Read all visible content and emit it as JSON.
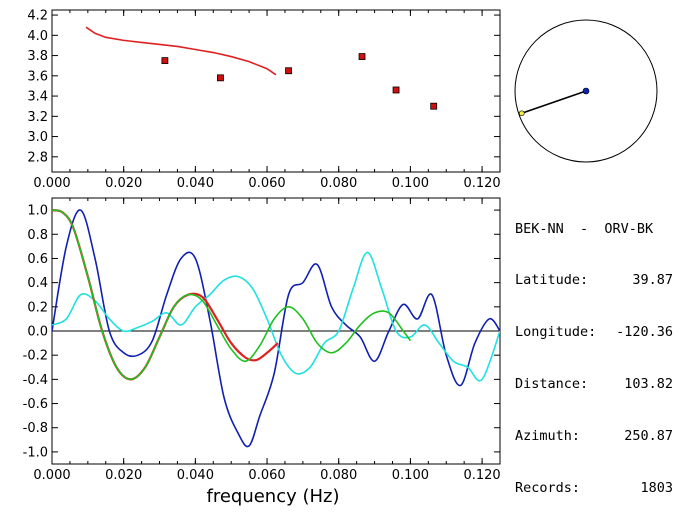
{
  "station_header": "BEK-NN  -  ORV-BK",
  "info": [
    {
      "key": "Latitude:",
      "value": "39.87"
    },
    {
      "key": "Longitude:",
      "value": "-120.36"
    },
    {
      "key": "Distance:",
      "value": "103.82"
    },
    {
      "key": "Azimuth:",
      "value": "250.87"
    },
    {
      "key": "Records:",
      "value": "1803"
    }
  ],
  "colors": {
    "red": "#e02020",
    "blue": "#1020b0",
    "green": "#20c020",
    "cyan": "#20e0e0",
    "marker": "#d01010"
  },
  "chart_data": [
    {
      "type": "scatter",
      "title": "",
      "xlabel": "",
      "ylabel": "",
      "xlim": [
        0.0,
        0.125
      ],
      "ylim": [
        2.65,
        4.25
      ],
      "x_ticks": [
        "0.000",
        "0.020",
        "0.040",
        "0.060",
        "0.080",
        "0.100",
        "0.120"
      ],
      "y_ticks": [
        "2.8",
        "3.0",
        "3.2",
        "3.4",
        "3.6",
        "3.8",
        "4.0",
        "4.2"
      ],
      "series": [
        {
          "kind": "line",
          "color": "#e02020",
          "x": [
            0.0095,
            0.012,
            0.015,
            0.02,
            0.025,
            0.03,
            0.035,
            0.04,
            0.045,
            0.05,
            0.055,
            0.06,
            0.0625
          ],
          "y": [
            4.08,
            4.02,
            3.98,
            3.95,
            3.93,
            3.91,
            3.89,
            3.86,
            3.83,
            3.79,
            3.74,
            3.67,
            3.61
          ]
        },
        {
          "kind": "markers",
          "color": "#d01010",
          "x": [
            0.0315,
            0.047,
            0.066,
            0.0865,
            0.096,
            0.1065
          ],
          "y": [
            3.75,
            3.58,
            3.65,
            3.79,
            3.46,
            3.3
          ]
        }
      ]
    },
    {
      "type": "line",
      "title": "",
      "xlabel": "frequency (Hz)",
      "ylabel": "",
      "xlim": [
        0.0,
        0.125
      ],
      "ylim": [
        -1.1,
        1.1
      ],
      "x_ticks": [
        "0.000",
        "0.020",
        "0.040",
        "0.060",
        "0.080",
        "0.100",
        "0.120"
      ],
      "y_ticks": [
        "-1.0",
        "-0.8",
        "-0.6",
        "-0.4",
        "-0.2",
        "0.0",
        "0.2",
        "0.4",
        "0.6",
        "0.8",
        "1.0"
      ],
      "series": [
        {
          "color": "#1020b0",
          "x": [
            0.0,
            0.004,
            0.008,
            0.012,
            0.016,
            0.02,
            0.024,
            0.028,
            0.032,
            0.036,
            0.04,
            0.044,
            0.048,
            0.052,
            0.055,
            0.058,
            0.062,
            0.066,
            0.07,
            0.074,
            0.078,
            0.082,
            0.086,
            0.09,
            0.094,
            0.098,
            0.102,
            0.106,
            0.11,
            0.114,
            0.118,
            0.122,
            0.125
          ],
          "y": [
            0.0,
            0.7,
            1.0,
            0.6,
            0.0,
            -0.18,
            -0.2,
            -0.08,
            0.3,
            0.6,
            0.6,
            0.1,
            -0.55,
            -0.85,
            -0.95,
            -0.7,
            -0.35,
            0.3,
            0.4,
            0.55,
            0.2,
            0.05,
            -0.05,
            -0.25,
            0.0,
            0.22,
            0.1,
            0.3,
            -0.2,
            -0.45,
            -0.1,
            0.1,
            0.0
          ]
        },
        {
          "color": "#20e0e0",
          "x": [
            0.0,
            0.004,
            0.008,
            0.012,
            0.016,
            0.02,
            0.024,
            0.028,
            0.032,
            0.036,
            0.04,
            0.044,
            0.048,
            0.052,
            0.056,
            0.06,
            0.064,
            0.068,
            0.072,
            0.076,
            0.08,
            0.084,
            0.088,
            0.092,
            0.096,
            0.1,
            0.104,
            0.108,
            0.112,
            0.116,
            0.12,
            0.125
          ],
          "y": [
            0.05,
            0.1,
            0.3,
            0.25,
            0.1,
            0.0,
            0.03,
            0.08,
            0.15,
            0.05,
            0.2,
            0.3,
            0.42,
            0.45,
            0.35,
            0.1,
            -0.2,
            -0.35,
            -0.3,
            -0.1,
            0.0,
            0.35,
            0.65,
            0.35,
            0.0,
            -0.05,
            0.05,
            -0.1,
            -0.25,
            -0.3,
            -0.4,
            0.0
          ]
        },
        {
          "color": "#e02020",
          "x": [
            0.0,
            0.003,
            0.006,
            0.01,
            0.014,
            0.018,
            0.022,
            0.026,
            0.03,
            0.034,
            0.038,
            0.042,
            0.046,
            0.05,
            0.054,
            0.057,
            0.06,
            0.063
          ],
          "y": [
            1.0,
            0.98,
            0.85,
            0.45,
            0.0,
            -0.3,
            -0.4,
            -0.3,
            -0.05,
            0.2,
            0.3,
            0.28,
            0.1,
            -0.1,
            -0.22,
            -0.24,
            -0.18,
            -0.1
          ]
        },
        {
          "color": "#20c020",
          "x": [
            0.0,
            0.003,
            0.006,
            0.01,
            0.014,
            0.018,
            0.022,
            0.026,
            0.03,
            0.034,
            0.038,
            0.042,
            0.046,
            0.05,
            0.054,
            0.058,
            0.062,
            0.066,
            0.07,
            0.074,
            0.078,
            0.082,
            0.086,
            0.09,
            0.094,
            0.098,
            0.1
          ],
          "y": [
            1.0,
            0.98,
            0.85,
            0.45,
            0.0,
            -0.3,
            -0.4,
            -0.3,
            -0.05,
            0.2,
            0.3,
            0.25,
            0.05,
            -0.15,
            -0.25,
            -0.12,
            0.1,
            0.2,
            0.1,
            -0.1,
            -0.18,
            -0.1,
            0.05,
            0.15,
            0.15,
            0.0,
            -0.08
          ]
        }
      ]
    }
  ],
  "azimuth_plot": {
    "azimuth_deg": 250.87,
    "distance_fraction": 0.43
  }
}
